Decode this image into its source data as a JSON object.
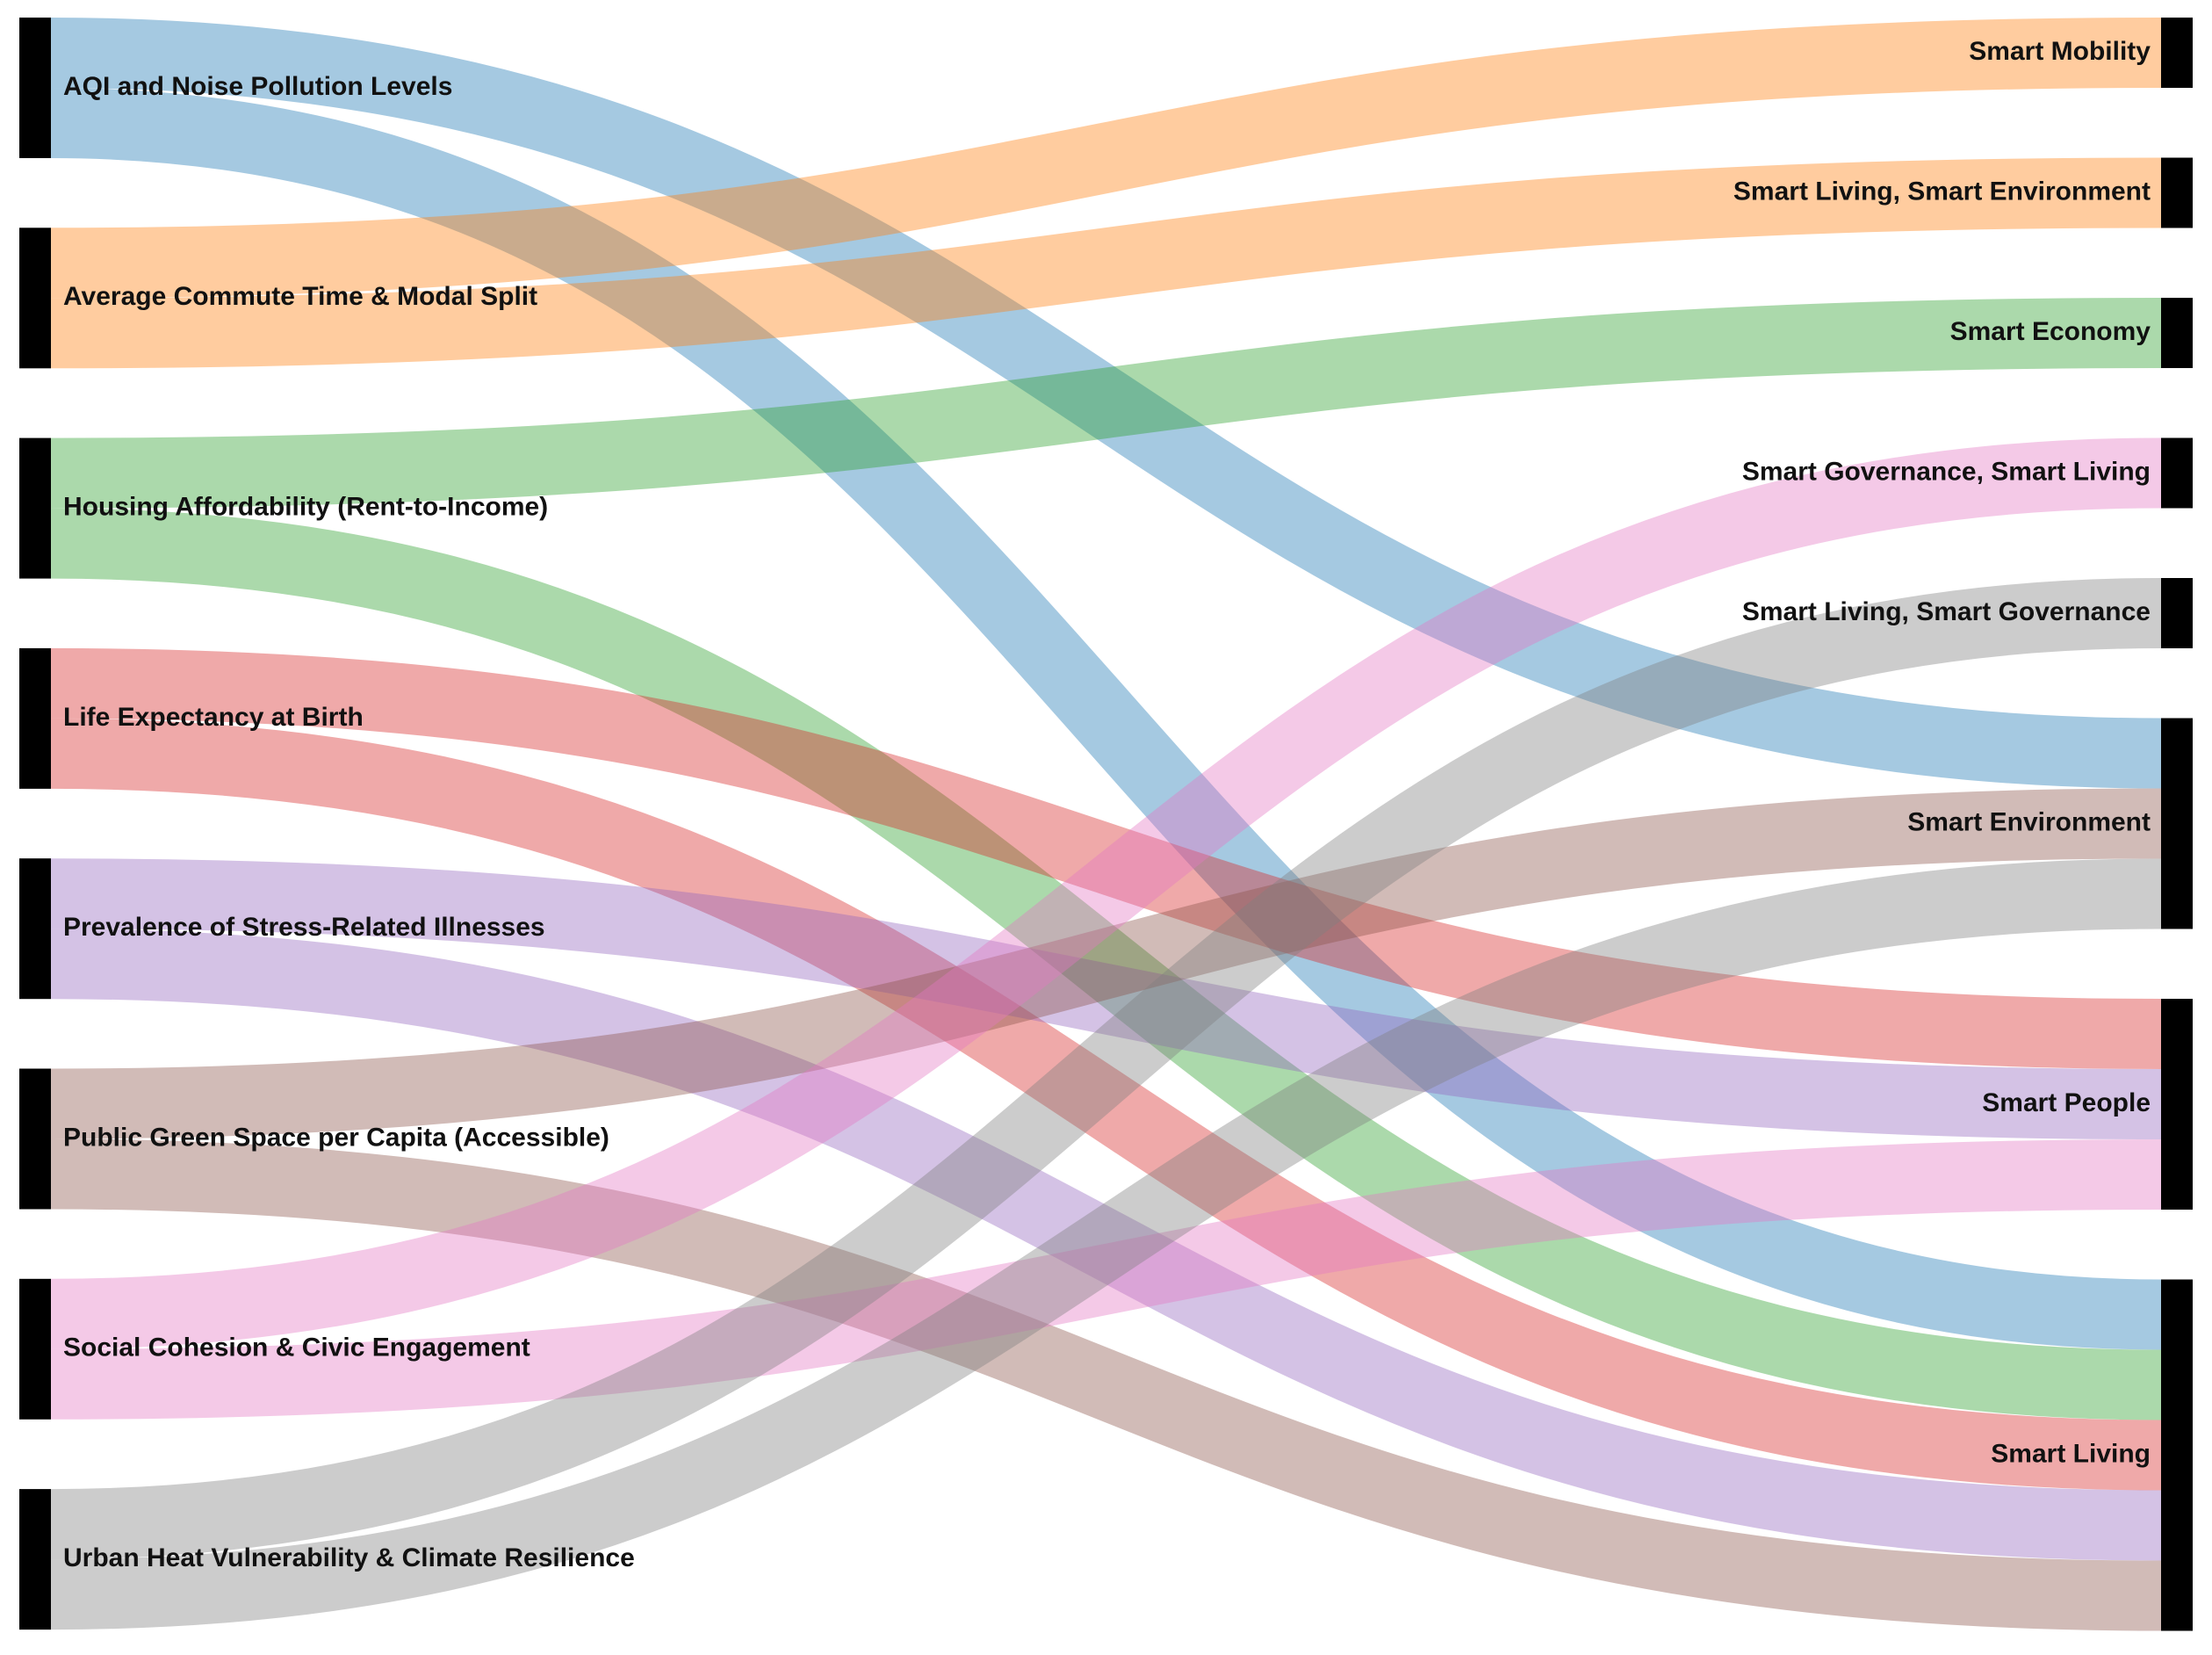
{
  "chart_data": {
    "type": "sankey",
    "sources": [
      "AQI and Noise Pollution Levels",
      "Average Commute Time & Modal Split",
      "Housing Affordability (Rent-to-Income)",
      "Life Expectancy at Birth",
      "Prevalence of Stress-Related Illnesses",
      "Public Green Space per Capita (Accessible)",
      "Social Cohesion & Civic Engagement",
      "Urban Heat Vulnerability & Climate Resilience"
    ],
    "targets": [
      "Smart Mobility",
      "Smart Living, Smart Environment",
      "Smart Economy",
      "Smart Governance, Smart Living",
      "Smart Living, Smart Governance",
      "Smart Environment",
      "Smart People",
      "Smart Living"
    ],
    "links": [
      {
        "source": "AQI and Noise Pollution Levels",
        "target": "Smart Environment",
        "value": 1
      },
      {
        "source": "AQI and Noise Pollution Levels",
        "target": "Smart Living",
        "value": 1
      },
      {
        "source": "Average Commute Time & Modal Split",
        "target": "Smart Mobility",
        "value": 1
      },
      {
        "source": "Average Commute Time & Modal Split",
        "target": "Smart Living, Smart Environment",
        "value": 1
      },
      {
        "source": "Housing Affordability (Rent-to-Income)",
        "target": "Smart Economy",
        "value": 1
      },
      {
        "source": "Housing Affordability (Rent-to-Income)",
        "target": "Smart Living",
        "value": 1
      },
      {
        "source": "Life Expectancy at Birth",
        "target": "Smart People",
        "value": 1
      },
      {
        "source": "Life Expectancy at Birth",
        "target": "Smart Living",
        "value": 1
      },
      {
        "source": "Prevalence of Stress-Related Illnesses",
        "target": "Smart People",
        "value": 1
      },
      {
        "source": "Prevalence of Stress-Related Illnesses",
        "target": "Smart Living",
        "value": 1
      },
      {
        "source": "Public Green Space per Capita (Accessible)",
        "target": "Smart Environment",
        "value": 1
      },
      {
        "source": "Public Green Space per Capita (Accessible)",
        "target": "Smart Living",
        "value": 1
      },
      {
        "source": "Social Cohesion & Civic Engagement",
        "target": "Smart Governance, Smart Living",
        "value": 1
      },
      {
        "source": "Social Cohesion & Civic Engagement",
        "target": "Smart People",
        "value": 1
      },
      {
        "source": "Urban Heat Vulnerability & Climate Resilience",
        "target": "Smart Living, Smart Governance",
        "value": 1
      },
      {
        "source": "Urban Heat Vulnerability & Climate Resilience",
        "target": "Smart Environment",
        "value": 1
      }
    ],
    "colors": [
      "#1f77b4",
      "#ff7f0e",
      "#2ca02c",
      "#d62728",
      "#9467bd",
      "#8c564b",
      "#e377c2",
      "#7f7f7f"
    ],
    "node_color": "#000000",
    "link_opacity": 0.4
  }
}
